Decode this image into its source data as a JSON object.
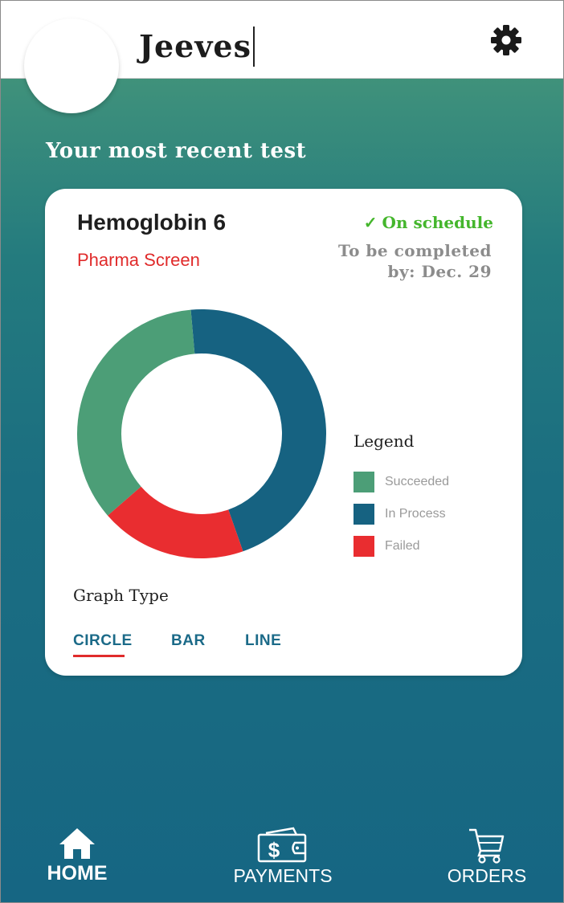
{
  "header": {
    "title": "Jeeves",
    "settings_icon": "gear-icon"
  },
  "section_title": "Your most recent test",
  "test_card": {
    "name": "Hemoglobin 6",
    "subtitle": "Pharma Screen",
    "status": "On schedule",
    "status_icon": "check-icon",
    "due_line1": "To be completed",
    "due_line2": "by: Dec. 29",
    "colors": {
      "status": "#44b62c",
      "subtitle": "#e02b2b"
    }
  },
  "chart_data": {
    "type": "pie",
    "variant": "donut",
    "categories": [
      "Succeeded",
      "In Process",
      "Failed"
    ],
    "values": [
      35,
      46,
      19
    ],
    "colors": [
      "#4c9e77",
      "#166281",
      "#e92d30"
    ],
    "legend_title": "Legend",
    "legend_placement": "right"
  },
  "graph_type": {
    "label": "Graph Type",
    "options": [
      "CIRCLE",
      "BAR",
      "LINE"
    ],
    "selected": "CIRCLE"
  },
  "bottom_nav": {
    "items": [
      {
        "label": "HOME",
        "icon": "home-icon",
        "active": true
      },
      {
        "label": "PAYMENTS",
        "icon": "wallet-icon",
        "active": false
      },
      {
        "label": "ORDERS",
        "icon": "cart-icon",
        "active": false
      }
    ]
  }
}
